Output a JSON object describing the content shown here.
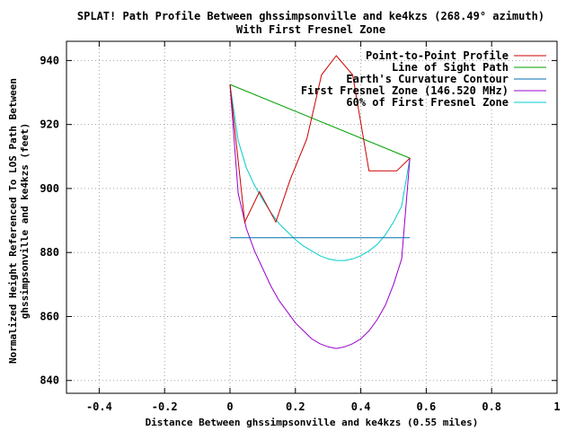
{
  "chart_data": {
    "type": "line",
    "title_line1": "SPLAT! Path Profile Between ghssimpsonville and ke4kzs (268.49° azimuth)",
    "title_line2": "With First Fresnel Zone",
    "xlabel": "Distance Between ghssimpsonville and ke4kzs (0.55 miles)",
    "ylabel_line1": "Normalized Height Referenced To LOS Path Between",
    "ylabel_line2": "ghssimpsonville and ke4kzs (feet)",
    "xlim": [
      -0.5,
      1.0
    ],
    "ylim": [
      836,
      946
    ],
    "x_ticks": [
      -0.4,
      -0.2,
      0,
      0.2,
      0.4,
      0.6,
      0.8,
      1
    ],
    "x_tick_labels": [
      "-0.4",
      "-0.2",
      "0",
      "0.2",
      "0.4",
      "0.6",
      "0.8",
      "1"
    ],
    "y_ticks": [
      840,
      860,
      880,
      900,
      920,
      940
    ],
    "y_tick_labels": [
      "840",
      "860",
      "880",
      "900",
      "920",
      "940"
    ],
    "grid": true,
    "legend_position": "top-right",
    "series": [
      {
        "name": "Point-to-Point Profile",
        "color": "#cc0000",
        "x": [
          0,
          0.045,
          0.09,
          0.14,
          0.185,
          0.235,
          0.28,
          0.325,
          0.375,
          0.425,
          0.47,
          0.51,
          0.55
        ],
        "y": [
          932.5,
          889.5,
          899,
          889.5,
          903,
          915.5,
          935.5,
          941.5,
          935.5,
          905.5,
          905.5,
          905.5,
          909.5
        ]
      },
      {
        "name": "Line of Sight Path",
        "color": "#00a000",
        "x": [
          0,
          0.55
        ],
        "y": [
          932.5,
          909.5
        ]
      },
      {
        "name": "Earth's Curvature Contour",
        "color": "#0070b0",
        "x": [
          0,
          0.55
        ],
        "y": [
          884.6,
          884.6
        ]
      },
      {
        "name": "First Fresnel Zone (146.520 MHz)",
        "color": "#9900cc",
        "x": [
          0,
          0.025,
          0.05,
          0.075,
          0.1,
          0.125,
          0.15,
          0.175,
          0.2,
          0.225,
          0.25,
          0.275,
          0.3,
          0.325,
          0.35,
          0.375,
          0.4,
          0.425,
          0.45,
          0.475,
          0.5,
          0.525,
          0.55
        ],
        "y": [
          932.5,
          898.5,
          887.5,
          880.5,
          875,
          869.5,
          865,
          861.5,
          858,
          855.5,
          853,
          851.5,
          850.5,
          850,
          850.5,
          851.5,
          853,
          855.5,
          859,
          863.5,
          870,
          878,
          909.5
        ]
      },
      {
        "name": "60% of First Fresnel Zone",
        "color": "#00cccc",
        "x": [
          0,
          0.025,
          0.05,
          0.075,
          0.1,
          0.125,
          0.15,
          0.175,
          0.2,
          0.225,
          0.25,
          0.275,
          0.3,
          0.325,
          0.35,
          0.375,
          0.4,
          0.425,
          0.45,
          0.475,
          0.5,
          0.525,
          0.55
        ],
        "y": [
          932.5,
          915,
          906.5,
          901,
          896.5,
          892.5,
          889,
          886.5,
          884,
          882,
          880.5,
          879,
          878,
          877.5,
          877.5,
          878,
          879,
          880.5,
          882.5,
          885.5,
          889.5,
          894.5,
          909.5
        ]
      }
    ]
  }
}
